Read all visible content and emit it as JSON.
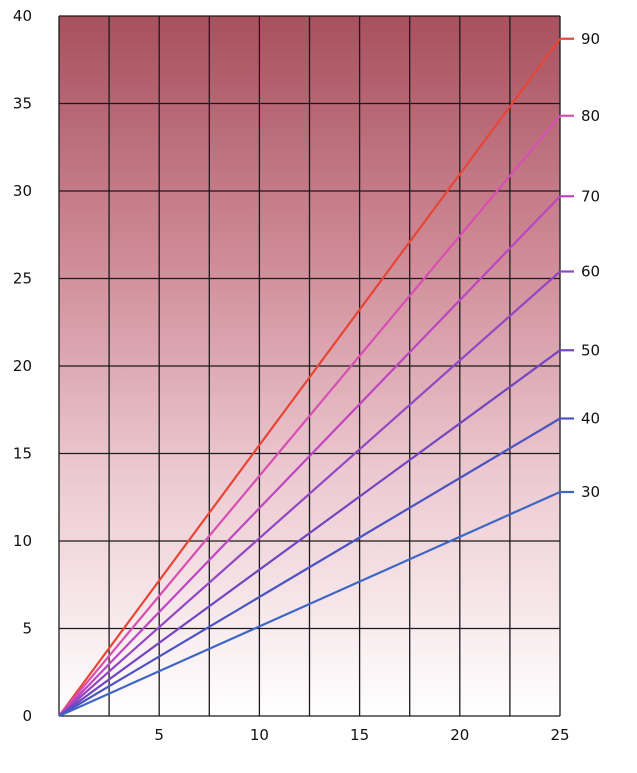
{
  "chart_data": {
    "type": "line",
    "title": "",
    "xlabel": "",
    "ylabel": "",
    "xlim": [
      0,
      25
    ],
    "ylim": [
      0,
      40
    ],
    "x_ticks": [
      5,
      10,
      15,
      20,
      25
    ],
    "x_tick_labels": [
      "5",
      "10",
      "15",
      "20",
      "25"
    ],
    "y_ticks": [
      0,
      5,
      10,
      15,
      20,
      25,
      30,
      35,
      40
    ],
    "y_tick_labels": [
      "0",
      "5",
      "10",
      "15",
      "20",
      "25",
      "30",
      "35",
      "40"
    ],
    "grid": true,
    "background": "vertical gradient from #a8505e at top to #ffffff at bottom",
    "series": [
      {
        "name": "90",
        "color": "#e84536",
        "x": [
          0,
          25
        ],
        "y": [
          0,
          38.7
        ]
      },
      {
        "name": "80",
        "color": "#d64fb3",
        "x": [
          0,
          25
        ],
        "y": [
          0,
          34.3
        ]
      },
      {
        "name": "70",
        "color": "#bd45c2",
        "x": [
          0,
          25
        ],
        "y": [
          0,
          29.7
        ]
      },
      {
        "name": "60",
        "color": "#9347c2",
        "x": [
          0,
          25
        ],
        "y": [
          0,
          25.4
        ]
      },
      {
        "name": "50",
        "color": "#7346c0",
        "x": [
          0,
          25
        ],
        "y": [
          0,
          20.9
        ]
      },
      {
        "name": "40",
        "color": "#4c54c2",
        "x": [
          0,
          25
        ],
        "y": [
          0,
          17.0
        ]
      },
      {
        "name": "30",
        "color": "#3d66c6",
        "x": [
          0,
          25
        ],
        "y": [
          0,
          12.8
        ]
      }
    ],
    "legend_placement": "right, labels at line ends"
  }
}
